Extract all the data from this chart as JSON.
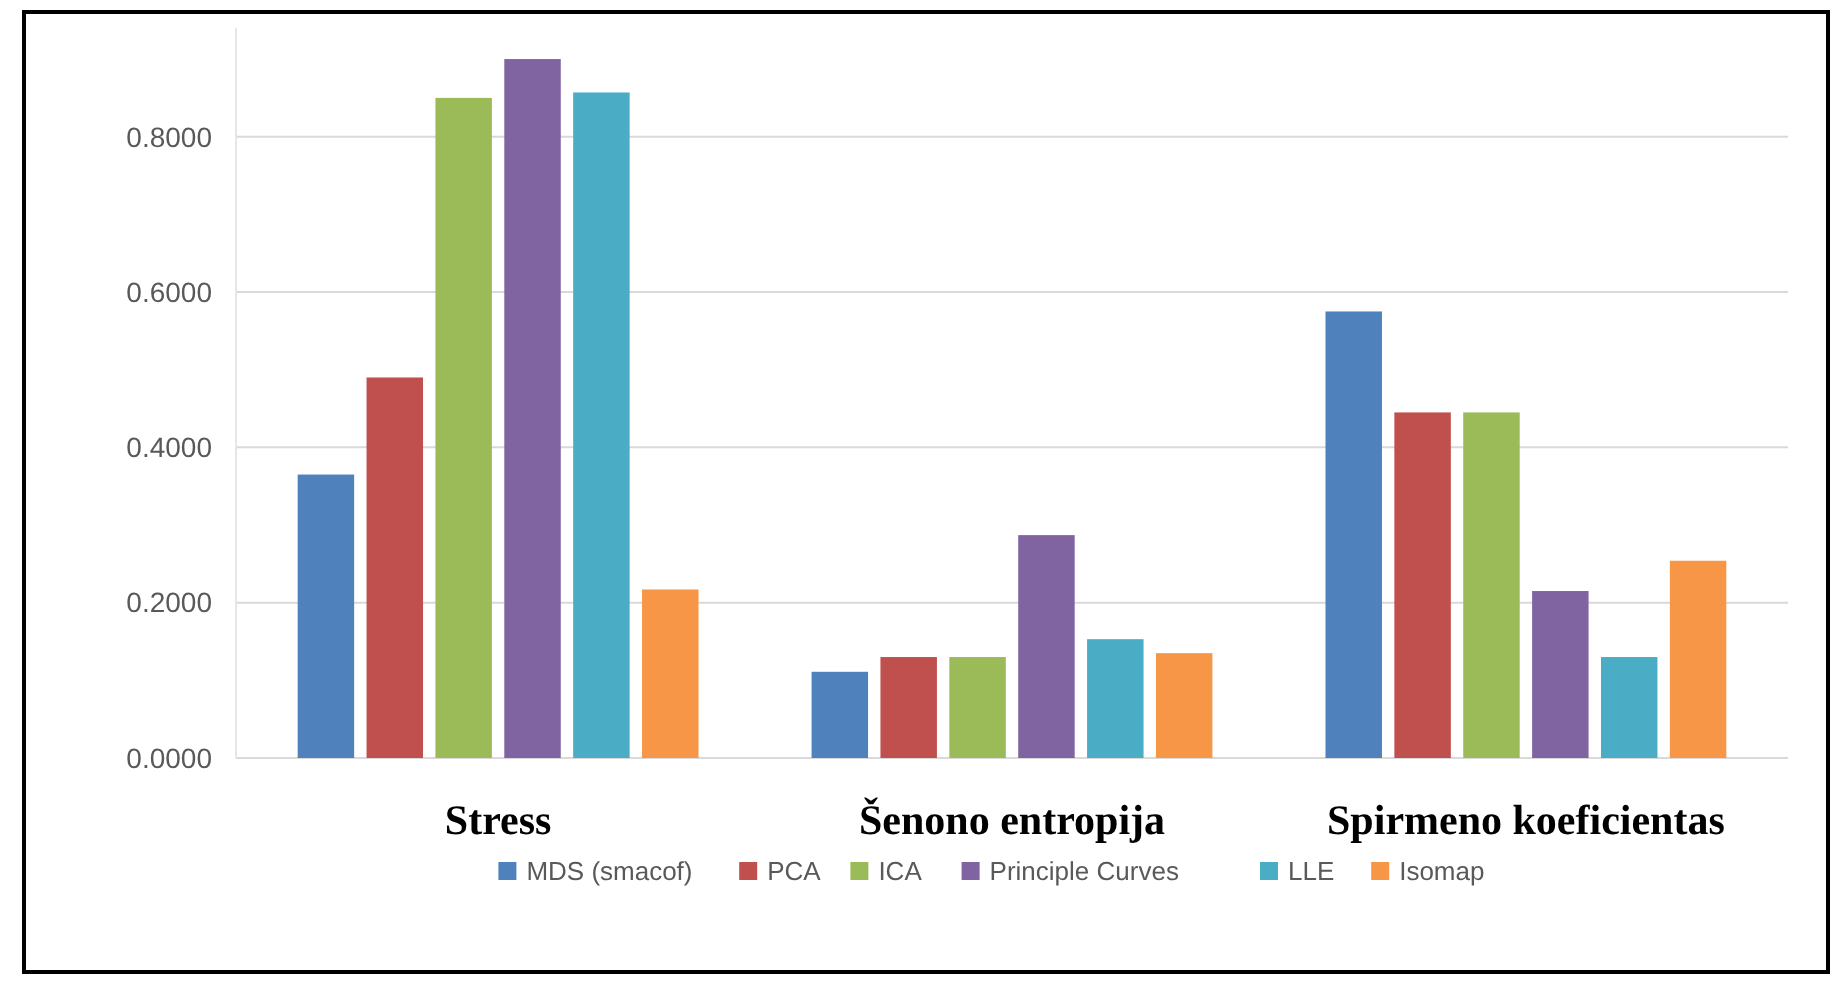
{
  "chart_data": {
    "type": "bar",
    "categories": [
      "Stress",
      "Šenono entropija",
      "Spirmeno koeficientas"
    ],
    "series": [
      {
        "name": "MDS (smacof)",
        "color": "#4f81bd",
        "values": [
          0.365,
          0.111,
          0.575
        ]
      },
      {
        "name": "PCA",
        "color": "#c0504d",
        "values": [
          0.49,
          0.13,
          0.445
        ]
      },
      {
        "name": "ICA",
        "color": "#9bbb59",
        "values": [
          0.85,
          0.13,
          0.445
        ]
      },
      {
        "name": "Principle Curves",
        "color": "#8064a2",
        "values": [
          0.9,
          0.287,
          0.215
        ]
      },
      {
        "name": "LLE",
        "color": "#4bacc6",
        "values": [
          0.857,
          0.153,
          0.13
        ]
      },
      {
        "name": "Isomap",
        "color": "#f79646",
        "values": [
          0.217,
          0.135,
          0.254
        ]
      }
    ],
    "ylim": [
      0,
      0.94
    ],
    "yticks": [
      {
        "value": 0,
        "label": "0.0000"
      },
      {
        "value": 0.2,
        "label": "0.2000"
      },
      {
        "value": 0.4,
        "label": "0.4000"
      },
      {
        "value": 0.6,
        "label": "0.6000"
      },
      {
        "value": 0.8,
        "label": "0.8000"
      }
    ],
    "grid": "y",
    "legend": "bottom"
  }
}
